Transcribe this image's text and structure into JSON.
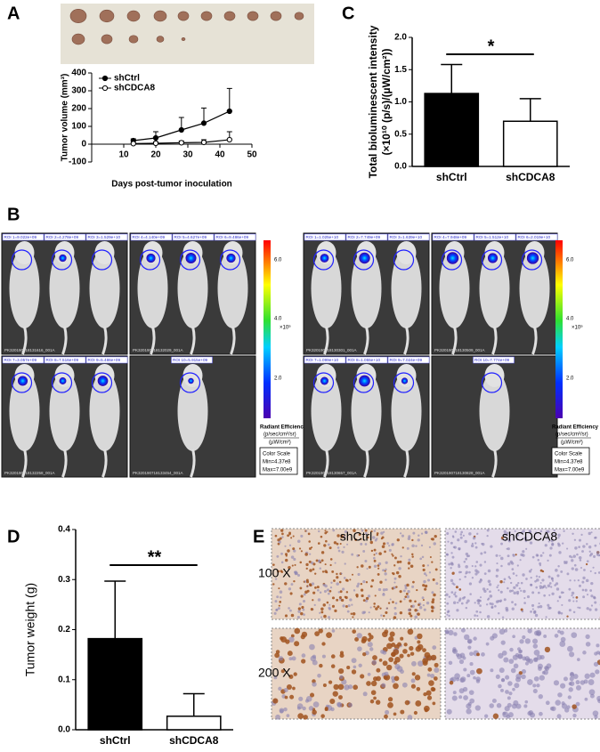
{
  "panel_labels": [
    "A",
    "B",
    "C",
    "D",
    "E"
  ],
  "chart_data": [
    {
      "type": "line",
      "ylabel": "Tumor volume (mm³)",
      "xlabel": "Days post-tumor inoculation",
      "x": [
        13,
        20,
        28,
        35,
        43
      ],
      "xlim": [
        0,
        50
      ],
      "xticks": [
        10,
        20,
        30,
        40,
        50
      ],
      "ylim": [
        -100,
        400
      ],
      "yticks": [
        -100,
        0,
        100,
        200,
        300,
        400
      ],
      "series": [
        {
          "name": "shCtrl",
          "color": "#000000",
          "marker_fill": "#000000",
          "values": [
            20,
            35,
            80,
            118,
            185
          ],
          "errors": [
            10,
            35,
            70,
            85,
            128
          ]
        },
        {
          "name": "shCDCA8",
          "color": "#000000",
          "marker_fill": "#ffffff",
          "values": [
            3,
            5,
            8,
            10,
            25
          ],
          "errors": [
            5,
            8,
            10,
            15,
            45
          ]
        }
      ]
    },
    {
      "type": "bar",
      "ylabel": "Total bioluminescent intensity",
      "ylabel2": "(×10¹⁰ (p/s)/(µW/cm²))",
      "categories": [
        "shCtrl",
        "shCDCA8"
      ],
      "values": [
        1.13,
        0.7
      ],
      "errors": [
        0.45,
        0.35
      ],
      "colors": [
        "#000000",
        "#ffffff"
      ],
      "ylim": [
        0,
        2
      ],
      "yticks": [
        {
          "value": 0,
          "label": "0.0"
        },
        0.5,
        {
          "value": 1,
          "label": "1.0"
        },
        1.5,
        {
          "value": 2,
          "label": "2.0"
        }
      ],
      "annotation": "*"
    },
    {
      "type": "bar",
      "ylabel": "Tumor weight (g)",
      "categories": [
        "shCtrl",
        "shCDCA8"
      ],
      "values": [
        0.182,
        0.027
      ],
      "errors": [
        0.115,
        0.045
      ],
      "colors": [
        "#000000",
        "#ffffff"
      ],
      "ylim": [
        0,
        0.4
      ],
      "yticks": [
        {
          "value": 0,
          "label": "0.0"
        },
        0.1,
        0.2,
        0.3,
        0.4
      ],
      "annotation": "**"
    }
  ],
  "imaging": {
    "groups": [
      {
        "rois": [
          "ROI 1=9.022e+09",
          "ROI 2=4.278e+09",
          "ROI 3=1.529e+10",
          "ROI 4=4.140e+09",
          "ROI 5=4.627e+09",
          "ROI 6=9.486e+09",
          "ROI 7=3.057e+09",
          "ROI 8=7.516e+09",
          "ROI 9=5.486e+09",
          "ROI 10=5.915e+09"
        ],
        "image_ids": [
          "PK320190718131616_001A",
          "PK320190718132029_001A",
          "PK320190718132258_001A",
          "PK320190718133454_001A"
        ],
        "colorbar": {
          "ticks": [
            "6.0",
            "4.0",
            "2.0"
          ],
          "unit": "×10⁹",
          "title": "Radiant Efficiency",
          "unit_top": "(p/sec/cm²/sr)",
          "unit_bottom": "(µW/cm²)",
          "box": [
            "Color Scale",
            "Min=4.37e8",
            "Max=7.00e9"
          ]
        }
      },
      {
        "rois": [
          "ROI 1=1.025e+10",
          "ROI 2=7.749e+09",
          "ROI 3=1.639e+10",
          "ROI 4=7.948e+09",
          "ROI 5=1.512e+10",
          "ROI 6=2.019e+10",
          "ROI 7=1.099e+10",
          "ROI 8=1.055e+10",
          "ROI 9=7.024e+09",
          "ROI 10=7.774e+09"
        ],
        "image_ids": [
          "PK320190718130301_001A",
          "PK320190718130509_001A",
          "PK320190718130657_001A",
          "PK320190718130828_001A"
        ],
        "colorbar": {
          "ticks": [
            "6.0",
            "4.0",
            "2.0"
          ],
          "unit": "×10⁹",
          "title": "Radiant Efficiency",
          "unit_top": "(p/sec/cm²/sr)",
          "unit_bottom": "(µW/cm²)",
          "box": [
            "Color Scale",
            "Min=4.37e8",
            "Max=7.00e9"
          ]
        }
      }
    ]
  },
  "histology": {
    "columns": [
      "shCtrl",
      "shCDCA8"
    ],
    "rows": [
      "100 X",
      "200 X"
    ]
  }
}
